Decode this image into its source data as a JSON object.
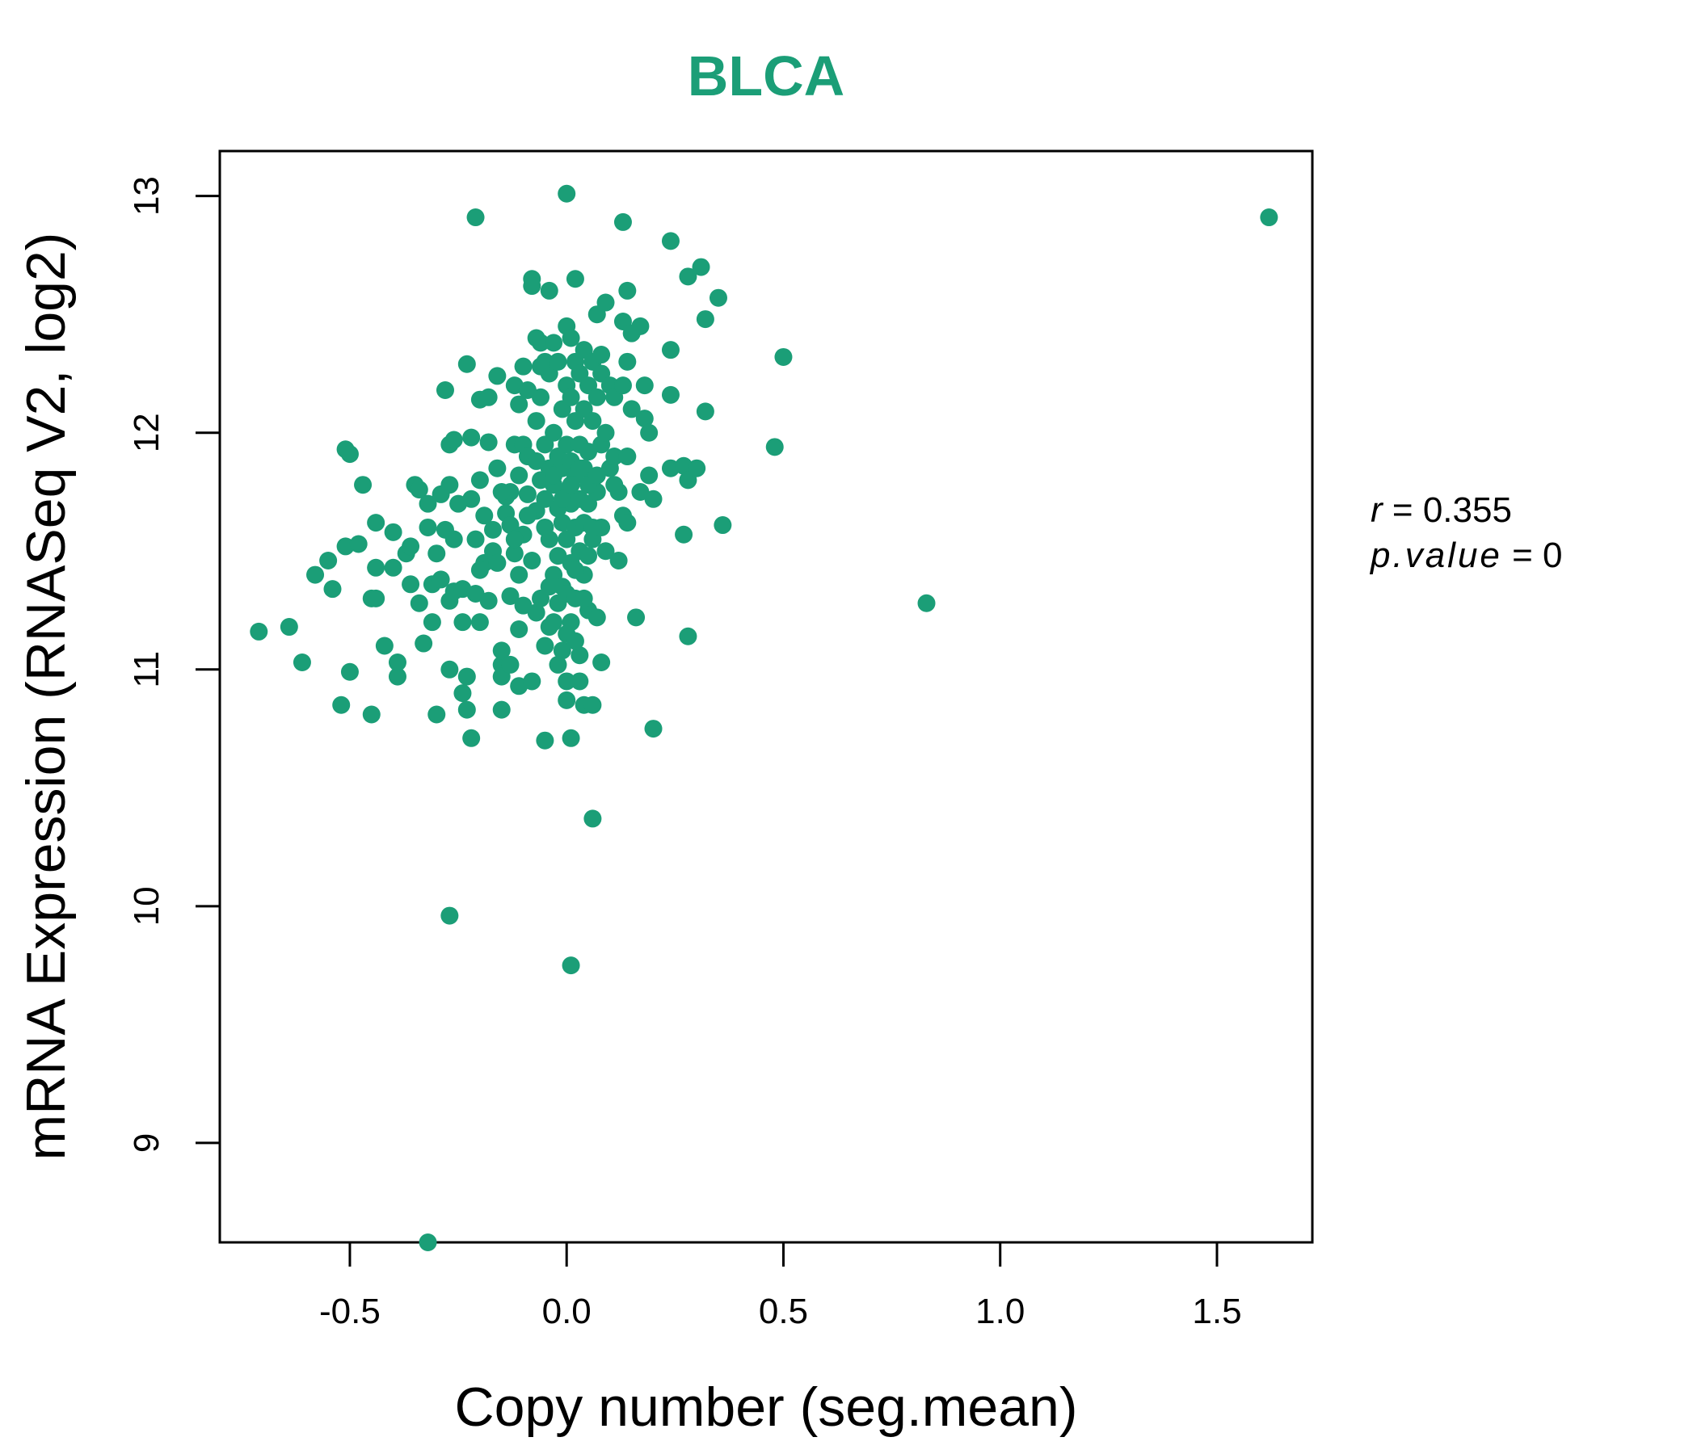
{
  "chart_data": {
    "type": "scatter",
    "title": "BLCA",
    "xlabel": "Copy number (seg.mean)",
    "ylabel": "mRNA Expression (RNASeq V2, log2)",
    "xlim": [
      -0.8,
      1.72
    ],
    "ylim": [
      8.58,
      13.19
    ],
    "x_ticks": [
      -0.5,
      0.0,
      0.5,
      1.0,
      1.5
    ],
    "x_tick_labels": [
      "-0.5",
      "0.0",
      "0.5",
      "1.0",
      "1.5"
    ],
    "y_ticks": [
      9,
      10,
      11,
      12,
      13
    ],
    "y_tick_labels": [
      "9",
      "10",
      "11",
      "12",
      "13"
    ],
    "grid": false,
    "legend": "none",
    "point_color": "#1b9e77",
    "stats": {
      "r_label": "r",
      "r_value": "0.355",
      "p_label": "p.value",
      "p_value": "0"
    },
    "points": [
      [
        1.62,
        12.91
      ],
      [
        -0.21,
        12.91
      ],
      [
        0.0,
        13.01
      ],
      [
        0.13,
        12.89
      ],
      [
        0.24,
        12.81
      ],
      [
        0.31,
        12.7
      ],
      [
        0.28,
        12.66
      ],
      [
        0.35,
        12.57
      ],
      [
        0.32,
        12.48
      ],
      [
        0.5,
        12.32
      ],
      [
        0.48,
        11.94
      ],
      [
        0.36,
        11.61
      ],
      [
        0.27,
        11.57
      ],
      [
        0.28,
        11.14
      ],
      [
        0.83,
        11.28
      ],
      [
        0.2,
        10.75
      ],
      [
        0.06,
        10.37
      ],
      [
        -0.27,
        9.96
      ],
      [
        0.01,
        9.75
      ],
      [
        -0.32,
        8.58
      ],
      [
        -0.71,
        11.16
      ],
      [
        -0.64,
        11.18
      ],
      [
        -0.61,
        11.03
      ],
      [
        -0.58,
        11.4
      ],
      [
        -0.55,
        11.46
      ],
      [
        -0.54,
        11.34
      ],
      [
        -0.51,
        11.52
      ],
      [
        -0.51,
        11.93
      ],
      [
        -0.5,
        11.91
      ],
      [
        -0.47,
        11.78
      ],
      [
        -0.48,
        11.53
      ],
      [
        -0.52,
        10.85
      ],
      [
        -0.5,
        10.99
      ],
      [
        -0.45,
        10.81
      ],
      [
        -0.44,
        11.3
      ],
      [
        -0.45,
        11.3
      ],
      [
        -0.44,
        11.43
      ],
      [
        -0.44,
        11.62
      ],
      [
        -0.42,
        11.1
      ],
      [
        -0.4,
        11.58
      ],
      [
        -0.4,
        11.43
      ],
      [
        -0.39,
        10.97
      ],
      [
        -0.39,
        11.03
      ],
      [
        -0.37,
        11.49
      ],
      [
        -0.36,
        11.52
      ],
      [
        -0.36,
        11.36
      ],
      [
        -0.35,
        11.78
      ],
      [
        -0.34,
        11.76
      ],
      [
        -0.34,
        11.28
      ],
      [
        -0.33,
        11.11
      ],
      [
        -0.32,
        11.6
      ],
      [
        -0.32,
        11.7
      ],
      [
        -0.31,
        11.36
      ],
      [
        -0.31,
        11.2
      ],
      [
        -0.3,
        10.81
      ],
      [
        -0.3,
        11.49
      ],
      [
        -0.29,
        11.38
      ],
      [
        -0.29,
        11.74
      ],
      [
        -0.28,
        11.59
      ],
      [
        -0.28,
        12.18
      ],
      [
        -0.27,
        11.95
      ],
      [
        -0.27,
        11.78
      ],
      [
        -0.27,
        11.29
      ],
      [
        -0.27,
        11.0
      ],
      [
        -0.26,
        11.33
      ],
      [
        -0.26,
        11.55
      ],
      [
        -0.26,
        11.97
      ],
      [
        -0.24,
        11.2
      ],
      [
        -0.24,
        10.9
      ],
      [
        -0.24,
        11.34
      ],
      [
        -0.23,
        12.29
      ],
      [
        -0.23,
        10.97
      ],
      [
        -0.23,
        10.83
      ],
      [
        -0.22,
        10.71
      ],
      [
        -0.22,
        11.72
      ],
      [
        -0.21,
        11.32
      ],
      [
        -0.21,
        11.55
      ],
      [
        -0.2,
        11.2
      ],
      [
        -0.2,
        11.8
      ],
      [
        -0.2,
        12.14
      ],
      [
        -0.19,
        11.45
      ],
      [
        -0.19,
        11.65
      ],
      [
        -0.18,
        12.15
      ],
      [
        -0.18,
        11.29
      ],
      [
        -0.17,
        11.5
      ],
      [
        -0.17,
        11.59
      ],
      [
        -0.16,
        12.24
      ],
      [
        -0.16,
        11.85
      ],
      [
        -0.16,
        11.45
      ],
      [
        -0.15,
        11.02
      ],
      [
        -0.15,
        11.08
      ],
      [
        -0.15,
        10.97
      ],
      [
        -0.15,
        10.83
      ],
      [
        -0.14,
        11.73
      ],
      [
        -0.14,
        11.66
      ],
      [
        -0.13,
        11.61
      ],
      [
        -0.13,
        11.31
      ],
      [
        -0.13,
        11.02
      ],
      [
        -0.12,
        12.2
      ],
      [
        -0.12,
        11.95
      ],
      [
        -0.12,
        11.49
      ],
      [
        -0.11,
        12.12
      ],
      [
        -0.11,
        11.4
      ],
      [
        -0.11,
        11.17
      ],
      [
        -0.11,
        10.93
      ],
      [
        -0.1,
        12.28
      ],
      [
        -0.1,
        11.95
      ],
      [
        -0.1,
        11.57
      ],
      [
        -0.1,
        11.27
      ],
      [
        -0.09,
        12.18
      ],
      [
        -0.09,
        11.9
      ],
      [
        -0.09,
        11.74
      ],
      [
        -0.08,
        12.65
      ],
      [
        -0.08,
        12.62
      ],
      [
        -0.08,
        11.46
      ],
      [
        -0.08,
        10.95
      ],
      [
        -0.07,
        12.4
      ],
      [
        -0.07,
        12.05
      ],
      [
        -0.07,
        11.67
      ],
      [
        -0.07,
        11.24
      ],
      [
        -0.06,
        12.38
      ],
      [
        -0.06,
        12.15
      ],
      [
        -0.06,
        11.8
      ],
      [
        -0.06,
        11.3
      ],
      [
        -0.05,
        12.3
      ],
      [
        -0.05,
        11.95
      ],
      [
        -0.05,
        11.72
      ],
      [
        -0.05,
        11.1
      ],
      [
        -0.05,
        10.7
      ],
      [
        -0.04,
        12.6
      ],
      [
        -0.04,
        12.25
      ],
      [
        -0.04,
        11.85
      ],
      [
        -0.04,
        11.55
      ],
      [
        -0.04,
        11.18
      ],
      [
        -0.03,
        12.38
      ],
      [
        -0.03,
        12.0
      ],
      [
        -0.03,
        11.78
      ],
      [
        -0.03,
        11.4
      ],
      [
        -0.03,
        11.2
      ],
      [
        -0.02,
        12.3
      ],
      [
        -0.02,
        11.9
      ],
      [
        -0.02,
        11.68
      ],
      [
        -0.02,
        11.48
      ],
      [
        -0.02,
        11.28
      ],
      [
        -0.01,
        12.1
      ],
      [
        -0.01,
        11.85
      ],
      [
        -0.01,
        11.62
      ],
      [
        -0.01,
        11.35
      ],
      [
        -0.01,
        11.08
      ],
      [
        0.0,
        12.45
      ],
      [
        0.0,
        12.2
      ],
      [
        0.0,
        11.95
      ],
      [
        0.0,
        11.75
      ],
      [
        0.0,
        11.55
      ],
      [
        0.0,
        11.32
      ],
      [
        0.0,
        10.95
      ],
      [
        0.0,
        10.87
      ],
      [
        0.01,
        12.4
      ],
      [
        0.01,
        12.15
      ],
      [
        0.01,
        11.88
      ],
      [
        0.01,
        11.7
      ],
      [
        0.01,
        11.45
      ],
      [
        0.01,
        11.2
      ],
      [
        0.01,
        10.71
      ],
      [
        0.02,
        12.65
      ],
      [
        0.02,
        12.3
      ],
      [
        0.02,
        12.05
      ],
      [
        0.02,
        11.82
      ],
      [
        0.02,
        11.6
      ],
      [
        0.02,
        11.3
      ],
      [
        0.03,
        12.25
      ],
      [
        0.03,
        11.95
      ],
      [
        0.03,
        11.72
      ],
      [
        0.03,
        11.5
      ],
      [
        0.03,
        11.06
      ],
      [
        0.03,
        10.95
      ],
      [
        0.04,
        12.35
      ],
      [
        0.04,
        12.1
      ],
      [
        0.04,
        11.85
      ],
      [
        0.04,
        11.62
      ],
      [
        0.04,
        11.4
      ],
      [
        0.04,
        10.85
      ],
      [
        0.05,
        12.2
      ],
      [
        0.05,
        11.92
      ],
      [
        0.05,
        11.7
      ],
      [
        0.05,
        11.48
      ],
      [
        0.05,
        11.25
      ],
      [
        0.06,
        12.3
      ],
      [
        0.06,
        12.05
      ],
      [
        0.06,
        11.8
      ],
      [
        0.06,
        11.55
      ],
      [
        0.06,
        10.85
      ],
      [
        0.07,
        12.5
      ],
      [
        0.07,
        12.15
      ],
      [
        0.07,
        11.75
      ],
      [
        0.07,
        11.22
      ],
      [
        0.08,
        12.25
      ],
      [
        0.08,
        11.95
      ],
      [
        0.08,
        11.6
      ],
      [
        0.08,
        11.03
      ],
      [
        0.09,
        12.55
      ],
      [
        0.09,
        12.0
      ],
      [
        0.09,
        11.5
      ],
      [
        0.1,
        12.2
      ],
      [
        0.1,
        11.85
      ],
      [
        0.11,
        12.15
      ],
      [
        0.11,
        11.9
      ],
      [
        0.12,
        11.75
      ],
      [
        0.12,
        11.46
      ],
      [
        0.13,
        12.47
      ],
      [
        0.13,
        12.2
      ],
      [
        0.13,
        11.65
      ],
      [
        0.14,
        12.6
      ],
      [
        0.14,
        12.3
      ],
      [
        0.14,
        11.62
      ],
      [
        0.15,
        12.42
      ],
      [
        0.15,
        12.1
      ],
      [
        0.16,
        11.22
      ],
      [
        0.17,
        12.45
      ],
      [
        0.17,
        11.75
      ],
      [
        0.18,
        12.2
      ],
      [
        0.18,
        12.06
      ],
      [
        0.19,
        12.0
      ],
      [
        0.19,
        11.82
      ],
      [
        0.2,
        11.72
      ],
      [
        0.24,
        12.35
      ],
      [
        0.24,
        12.16
      ],
      [
        0.24,
        11.85
      ],
      [
        0.27,
        11.86
      ],
      [
        0.28,
        11.8
      ],
      [
        0.3,
        11.85
      ],
      [
        0.32,
        12.09
      ],
      [
        -0.13,
        11.75
      ],
      [
        -0.11,
        11.82
      ],
      [
        -0.09,
        11.65
      ],
      [
        -0.07,
        11.88
      ],
      [
        -0.05,
        11.6
      ],
      [
        -0.03,
        11.82
      ],
      [
        -0.01,
        11.72
      ],
      [
        0.01,
        11.78
      ],
      [
        0.03,
        11.85
      ],
      [
        0.05,
        11.78
      ],
      [
        0.07,
        11.82
      ],
      [
        -0.02,
        11.02
      ],
      [
        0.0,
        11.15
      ],
      [
        0.02,
        11.12
      ],
      [
        -0.04,
        11.35
      ],
      [
        0.02,
        11.42
      ],
      [
        0.04,
        11.3
      ],
      [
        0.06,
        11.6
      ],
      [
        -0.15,
        11.75
      ],
      [
        -0.12,
        11.55
      ],
      [
        -0.2,
        11.42
      ],
      [
        -0.22,
        11.98
      ],
      [
        -0.25,
        11.7
      ],
      [
        -0.18,
        11.96
      ],
      [
        -0.06,
        12.28
      ],
      [
        0.08,
        12.33
      ],
      [
        0.11,
        11.78
      ],
      [
        0.14,
        11.9
      ]
    ]
  }
}
